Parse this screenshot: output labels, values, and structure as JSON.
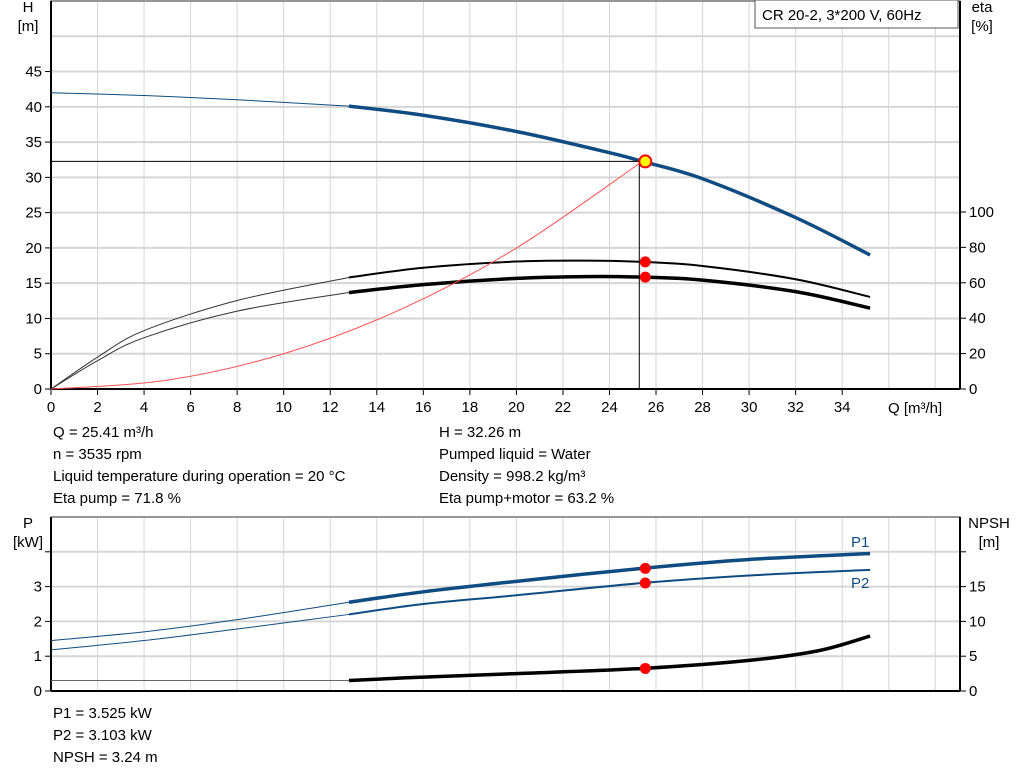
{
  "chart_data": [
    {
      "type": "line",
      "title": "CR 20-2, 3*200 V, 60Hz",
      "xlabel": "Q [m³/h]",
      "ylabel": "H\n[m]",
      "y2label": "eta\n[%]",
      "xlim": [
        0,
        39
      ],
      "ylim": [
        0,
        55
      ],
      "y2lim": [
        0,
        100
      ],
      "xticks": [
        "0",
        "2",
        "4",
        "6",
        "8",
        "10",
        "12",
        "14",
        "16",
        "18",
        "20",
        "22",
        "24",
        "26",
        "28",
        "30",
        "32",
        "34"
      ],
      "yticks": [
        "0",
        "5",
        "10",
        "15",
        "20",
        "25",
        "30",
        "35",
        "40",
        "45"
      ],
      "y2ticks": [
        "0",
        "20",
        "40",
        "60",
        "80",
        "100"
      ],
      "grid": true,
      "colors": {
        "head": "#0f4c81",
        "eta": "#000000",
        "system": "#ff5050",
        "duty": "#ffff00",
        "marker": "#ff0000"
      },
      "series": [
        {
          "key": "head",
          "axis": "left",
          "thin_until": 12.8,
          "x": [
            0,
            4,
            8,
            12.8,
            16,
            20,
            24,
            25.41,
            28,
            32,
            35.2
          ],
          "y": [
            42,
            41.6,
            41,
            40.1,
            38.8,
            36.5,
            33.5,
            32.26,
            29.8,
            24.3,
            19
          ]
        },
        {
          "key": "eta_pump",
          "axis": "right",
          "thin_until": 12.8,
          "x": [
            0,
            2,
            4,
            8,
            12.8,
            16,
            20,
            23,
            25.41,
            28,
            32,
            35.2
          ],
          "y": [
            0,
            18,
            33,
            50,
            63,
            68.5,
            72,
            72.5,
            71.8,
            69.5,
            62,
            52
          ]
        },
        {
          "key": "eta_pump_motor",
          "axis": "right",
          "thin_until": 12.8,
          "x": [
            0,
            2,
            4,
            8,
            12.8,
            16,
            20,
            23,
            25.41,
            28,
            32,
            35.2
          ],
          "y": [
            0,
            16,
            29,
            44,
            54.5,
            59,
            62.5,
            63.5,
            63.2,
            61.5,
            55,
            45.7
          ]
        },
        {
          "key": "system",
          "axis": "left",
          "x": [
            0,
            5,
            10,
            15,
            20,
            25.41
          ],
          "y": [
            0,
            1.25,
            5,
            11.24,
            19.98,
            32.26
          ]
        }
      ],
      "duty_point": {
        "Q": 25.41,
        "H": 32.26,
        "eta_pump": 71.8,
        "eta_pump_motor": 63.2
      }
    },
    {
      "type": "line",
      "ylabel": "P\n[kW]",
      "y2label": "NPSH\n[m]",
      "xlim": [
        0,
        39
      ],
      "ylim": [
        0,
        5
      ],
      "y2lim": [
        0,
        25
      ],
      "yticks": [
        "0",
        "1",
        "2",
        "3"
      ],
      "y2ticks": [
        "0",
        "5",
        "10",
        "15"
      ],
      "grid": true,
      "series": [
        {
          "key": "P1",
          "name": "P1",
          "axis": "left",
          "thin_until": 12.8,
          "x": [
            0,
            4,
            8,
            12.8,
            16,
            20,
            25.41,
            30,
            35.2
          ],
          "y": [
            1.45,
            1.7,
            2.05,
            2.55,
            2.85,
            3.15,
            3.525,
            3.78,
            3.95
          ]
        },
        {
          "key": "P2",
          "name": "P2",
          "axis": "left",
          "thin_until": 12.8,
          "x": [
            0,
            4,
            8,
            12.8,
            16,
            20,
            25.41,
            30,
            35.2
          ],
          "y": [
            1.18,
            1.45,
            1.78,
            2.2,
            2.5,
            2.75,
            3.103,
            3.32,
            3.48
          ]
        },
        {
          "key": "NPSH",
          "axis": "right",
          "thin_until": 12.8,
          "x": [
            0,
            12.8,
            16,
            20,
            25.41,
            30,
            33,
            35.2
          ],
          "y": [
            1.5,
            1.5,
            2,
            2.5,
            3.24,
            4.4,
            5.8,
            7.9
          ]
        }
      ],
      "duty_point": {
        "Q": 25.41,
        "P1": 3.525,
        "P2": 3.103,
        "NPSH": 3.24
      }
    }
  ],
  "readout": {
    "left": [
      "Q = 25.41 m³/h",
      "n = 3535 rpm",
      "Liquid temperature during operation = 20 °C",
      "Eta pump = 71.8 %"
    ],
    "right": [
      "H = 32.26 m",
      "Pumped liquid = Water",
      "Density = 998.2 kg/m³",
      "Eta pump+motor = 63.2 %"
    ],
    "bottom": [
      "P1 = 3.525 kW",
      "P2 = 3.103 kW",
      "NPSH = 3.24 m"
    ]
  }
}
